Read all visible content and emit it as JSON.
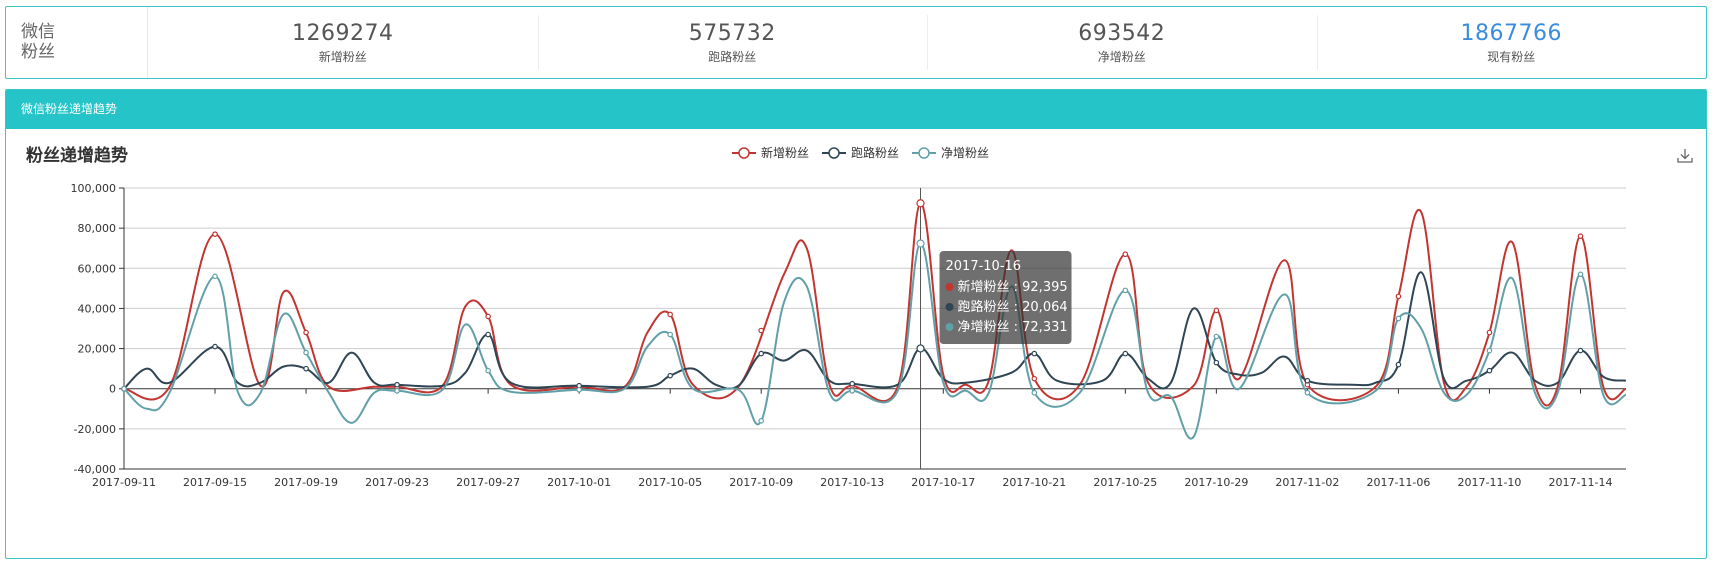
{
  "summary": {
    "label_line1": "微信",
    "label_line2": "粉丝",
    "stats": [
      {
        "value": "1269274",
        "label": "新增粉丝"
      },
      {
        "value": "575732",
        "label": "跑路粉丝"
      },
      {
        "value": "693542",
        "label": "净增粉丝"
      },
      {
        "value": "1867766",
        "label": "现有粉丝"
      }
    ]
  },
  "panel": {
    "header": "微信粉丝递增趋势"
  },
  "toolbar": {
    "download_icon": "download-icon"
  },
  "colors": {
    "new": "#c23531",
    "lost": "#2f4554",
    "net": "#61a0a8",
    "accent": "#3c8cde",
    "teal": "#24c4c8"
  },
  "chart_data": {
    "type": "line",
    "title": "粉丝递增趋势",
    "legend_position": "top-center",
    "ylim": [
      -40000,
      100000
    ],
    "yticks": [
      100000,
      80000,
      60000,
      40000,
      20000,
      0,
      -20000,
      -40000
    ],
    "ytick_labels": [
      "100,000",
      "80,000",
      "60,000",
      "40,000",
      "20,000",
      "0",
      "-20,000",
      "-40,000"
    ],
    "xlim": [
      "2017-09-11",
      "2017-11-16"
    ],
    "xticks": [
      "2017-09-11",
      "2017-09-15",
      "2017-09-19",
      "2017-09-23",
      "2017-09-27",
      "2017-10-01",
      "2017-10-05",
      "2017-10-09",
      "2017-10-13",
      "2017-10-17",
      "2017-10-21",
      "2017-10-25",
      "2017-10-29",
      "2017-11-02",
      "2017-11-06",
      "2017-11-10",
      "2017-11-14"
    ],
    "grid": true,
    "series": [
      {
        "name": "新增粉丝",
        "points": [
          [
            "2017-09-11",
            0
          ],
          [
            "2017-09-13",
            1000
          ],
          [
            "2017-09-15",
            77000
          ],
          [
            "2017-09-17",
            1500
          ],
          [
            "2017-09-18",
            48000
          ],
          [
            "2017-09-19",
            28000
          ],
          [
            "2017-09-20",
            1000
          ],
          [
            "2017-09-22",
            1000
          ],
          [
            "2017-09-23",
            1000
          ],
          [
            "2017-09-25",
            1500
          ],
          [
            "2017-09-26",
            41000
          ],
          [
            "2017-09-27",
            36000
          ],
          [
            "2017-09-28",
            2000
          ],
          [
            "2017-10-01",
            1000
          ],
          [
            "2017-10-03",
            1000
          ],
          [
            "2017-10-04",
            28000
          ],
          [
            "2017-10-05",
            37000
          ],
          [
            "2017-10-06",
            2000
          ],
          [
            "2017-10-08",
            1000
          ],
          [
            "2017-10-10",
            57000
          ],
          [
            "2017-10-11",
            70000
          ],
          [
            "2017-10-12",
            2000
          ],
          [
            "2017-10-13",
            1500
          ],
          [
            "2017-10-15",
            1000
          ],
          [
            "2017-10-16",
            92395
          ],
          [
            "2017-10-17",
            7000
          ],
          [
            "2017-10-18",
            2000
          ],
          [
            "2017-10-19",
            4000
          ],
          [
            "2017-10-20",
            69000
          ],
          [
            "2017-10-21",
            5000
          ],
          [
            "2017-10-23",
            2000
          ],
          [
            "2017-10-25",
            67000
          ],
          [
            "2017-10-26",
            3000
          ],
          [
            "2017-10-28",
            1500
          ],
          [
            "2017-10-29",
            39000
          ],
          [
            "2017-10-30",
            5000
          ],
          [
            "2017-11-01",
            64000
          ],
          [
            "2017-11-02",
            2000
          ],
          [
            "2017-11-05",
            1000
          ],
          [
            "2017-11-06",
            46000
          ],
          [
            "2017-11-07",
            88000
          ],
          [
            "2017-11-08",
            3000
          ],
          [
            "2017-11-09",
            1000
          ],
          [
            "2017-11-10",
            28000
          ],
          [
            "2017-11-11",
            73000
          ],
          [
            "2017-11-12",
            2000
          ],
          [
            "2017-11-13",
            1000
          ],
          [
            "2017-11-14",
            76000
          ],
          [
            "2017-11-15",
            1000
          ],
          [
            "2017-11-16",
            0
          ]
        ]
      },
      {
        "name": "跑路粉丝",
        "points": [
          [
            "2017-09-11",
            0
          ],
          [
            "2017-09-12",
            10000
          ],
          [
            "2017-09-13",
            3000
          ],
          [
            "2017-09-15",
            21000
          ],
          [
            "2017-09-16",
            3000
          ],
          [
            "2017-09-17",
            3000
          ],
          [
            "2017-09-18",
            11000
          ],
          [
            "2017-09-19",
            10000
          ],
          [
            "2017-09-20",
            3000
          ],
          [
            "2017-09-21",
            18000
          ],
          [
            "2017-09-22",
            3000
          ],
          [
            "2017-09-23",
            2000
          ],
          [
            "2017-09-25",
            1500
          ],
          [
            "2017-09-26",
            8000
          ],
          [
            "2017-09-27",
            27000
          ],
          [
            "2017-09-28",
            3000
          ],
          [
            "2017-10-01",
            1500
          ],
          [
            "2017-10-04",
            1000
          ],
          [
            "2017-10-05",
            6500
          ],
          [
            "2017-10-06",
            10000
          ],
          [
            "2017-10-07",
            2000
          ],
          [
            "2017-10-08",
            1500
          ],
          [
            "2017-10-09",
            17500
          ],
          [
            "2017-10-10",
            14000
          ],
          [
            "2017-10-11",
            19000
          ],
          [
            "2017-10-12",
            4000
          ],
          [
            "2017-10-13",
            2500
          ],
          [
            "2017-10-15",
            2000
          ],
          [
            "2017-10-16",
            20064
          ],
          [
            "2017-10-17",
            5000
          ],
          [
            "2017-10-18",
            3000
          ],
          [
            "2017-10-20",
            8000
          ],
          [
            "2017-10-21",
            17500
          ],
          [
            "2017-10-22",
            4000
          ],
          [
            "2017-10-24",
            4000
          ],
          [
            "2017-10-25",
            17500
          ],
          [
            "2017-10-26",
            5000
          ],
          [
            "2017-10-27",
            3000
          ],
          [
            "2017-10-28",
            40000
          ],
          [
            "2017-10-29",
            13000
          ],
          [
            "2017-10-30",
            7000
          ],
          [
            "2017-10-31",
            8000
          ],
          [
            "2017-11-01",
            16000
          ],
          [
            "2017-11-02",
            4000
          ],
          [
            "2017-11-04",
            2000
          ],
          [
            "2017-11-05",
            3000
          ],
          [
            "2017-11-06",
            12000
          ],
          [
            "2017-11-07",
            58000
          ],
          [
            "2017-11-08",
            5000
          ],
          [
            "2017-11-09",
            4000
          ],
          [
            "2017-11-10",
            9000
          ],
          [
            "2017-11-11",
            18000
          ],
          [
            "2017-11-12",
            4000
          ],
          [
            "2017-11-13",
            3000
          ],
          [
            "2017-11-14",
            19000
          ],
          [
            "2017-11-15",
            6000
          ],
          [
            "2017-11-16",
            4000
          ]
        ]
      },
      {
        "name": "净增粉丝",
        "points": [
          [
            "2017-09-11",
            0
          ],
          [
            "2017-09-12",
            -10000
          ],
          [
            "2017-09-13",
            -2000
          ],
          [
            "2017-09-15",
            56000
          ],
          [
            "2017-09-16",
            -1500
          ],
          [
            "2017-09-17",
            -2000
          ],
          [
            "2017-09-18",
            37000
          ],
          [
            "2017-09-19",
            18000
          ],
          [
            "2017-09-20",
            -2000
          ],
          [
            "2017-09-21",
            -17000
          ],
          [
            "2017-09-22",
            -2000
          ],
          [
            "2017-09-23",
            -1000
          ],
          [
            "2017-09-25",
            -500
          ],
          [
            "2017-09-26",
            32000
          ],
          [
            "2017-09-27",
            9000
          ],
          [
            "2017-09-28",
            -1500
          ],
          [
            "2017-10-01",
            -500
          ],
          [
            "2017-10-03",
            0
          ],
          [
            "2017-10-04",
            21000
          ],
          [
            "2017-10-05",
            27000
          ],
          [
            "2017-10-06",
            0
          ],
          [
            "2017-10-08",
            -500
          ],
          [
            "2017-10-09",
            -16000
          ],
          [
            "2017-10-10",
            43000
          ],
          [
            "2017-10-11",
            51000
          ],
          [
            "2017-10-12",
            -2000
          ],
          [
            "2017-10-13",
            -1000
          ],
          [
            "2017-10-15",
            -1000
          ],
          [
            "2017-10-16",
            72331
          ],
          [
            "2017-10-17",
            3000
          ],
          [
            "2017-10-18",
            -1000
          ],
          [
            "2017-10-19",
            -2000
          ],
          [
            "2017-10-20",
            51000
          ],
          [
            "2017-10-21",
            -2000
          ],
          [
            "2017-10-23",
            -2000
          ],
          [
            "2017-10-25",
            49000
          ],
          [
            "2017-10-26",
            -2000
          ],
          [
            "2017-10-27",
            -4000
          ],
          [
            "2017-10-28",
            -24000
          ],
          [
            "2017-10-29",
            26000
          ],
          [
            "2017-10-30",
            0
          ],
          [
            "2017-11-01",
            47000
          ],
          [
            "2017-11-02",
            -2000
          ],
          [
            "2017-11-05",
            -1000
          ],
          [
            "2017-11-06",
            35000
          ],
          [
            "2017-11-07",
            30000
          ],
          [
            "2017-11-08",
            -2000
          ],
          [
            "2017-11-09",
            -3000
          ],
          [
            "2017-11-10",
            19000
          ],
          [
            "2017-11-11",
            55000
          ],
          [
            "2017-11-12",
            -2000
          ],
          [
            "2017-11-13",
            -2000
          ],
          [
            "2017-11-14",
            57000
          ],
          [
            "2017-11-15",
            -3000
          ],
          [
            "2017-11-16",
            -3000
          ]
        ]
      }
    ],
    "marker_dates": [
      "2017-09-11",
      "2017-09-15",
      "2017-09-19",
      "2017-09-23",
      "2017-09-27",
      "2017-10-01",
      "2017-10-05",
      "2017-10-09",
      "2017-10-13",
      "2017-10-16",
      "2017-10-21",
      "2017-10-25",
      "2017-10-29",
      "2017-11-02",
      "2017-11-06",
      "2017-11-10",
      "2017-11-14"
    ],
    "tooltip": {
      "date": "2017-10-16",
      "rows": [
        {
          "series": "新增粉丝",
          "value": "92,395"
        },
        {
          "series": "跑路粉丝",
          "value": "20,064"
        },
        {
          "series": "净增粉丝",
          "value": "72,331"
        }
      ]
    }
  }
}
